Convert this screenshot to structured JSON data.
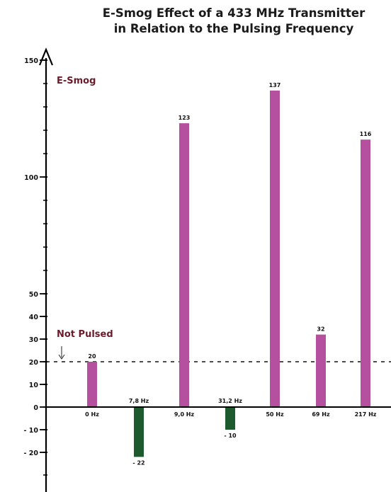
{
  "chart_data": {
    "type": "bar",
    "title_lines": [
      "E-Smog Effect of a 433 MHz Transmitter",
      "in Relation to the Pulsing Frequency"
    ],
    "ylabel": "E-Smog",
    "yticks": [
      150,
      100,
      50,
      40,
      30,
      20,
      10,
      0,
      -10,
      -20
    ],
    "ytick_labels": [
      "150",
      "100",
      "50",
      "40",
      "30",
      "20",
      "10",
      "0",
      "- 10",
      "- 20"
    ],
    "categories": [
      "0 Hz",
      "7,8 Hz",
      "9,0 Hz",
      "31,2 Hz",
      "50 Hz",
      "69 Hz",
      "217 Hz"
    ],
    "values": [
      20,
      -22,
      123,
      -10,
      137,
      32,
      116
    ],
    "value_labels": [
      "20",
      "- 22",
      "123",
      "- 10",
      "137",
      "32",
      "116"
    ],
    "reference_line": {
      "value": 20,
      "label": "Not Pulsed",
      "style": "dashed"
    },
    "colors": {
      "positive": "#b5509e",
      "negative": "#1d5b2e",
      "axis": "#000000",
      "series_label": "#6b1a2a"
    }
  }
}
